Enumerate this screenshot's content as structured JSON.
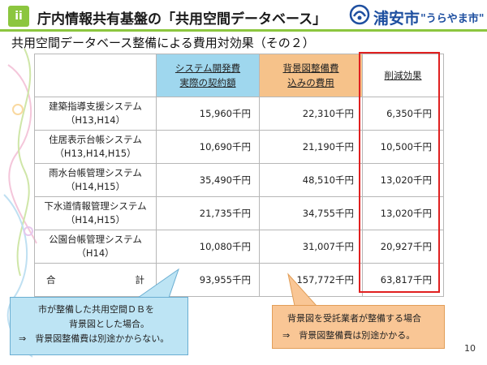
{
  "header": {
    "section_badge": "ii",
    "title": "庁内情報共有基盤の「共用空間データベース」",
    "logo_city": "浦安市",
    "logo_slogan": "\"うらやま市\""
  },
  "subtitle": "共用空間データベース整備による費用対効果（その２）",
  "table": {
    "headers": {
      "col_a_line1": "システム開発費",
      "col_a_line2": "実際の契約額",
      "col_b_line1": "背景図整備費",
      "col_b_line2": "込みの費用",
      "col_c": "削減効果"
    },
    "rows": [
      {
        "name": "建築指導支援システム",
        "years": "（H13,H14）",
        "actual": "15,960千円",
        "with_bg": "22,310千円",
        "reduction": "6,350千円"
      },
      {
        "name": "住居表示台帳システム",
        "years": "（H13,H14,H15）",
        "actual": "10,690千円",
        "with_bg": "21,190千円",
        "reduction": "10,500千円"
      },
      {
        "name": "雨水台帳管理システム",
        "years": "（H14,H15）",
        "actual": "35,490千円",
        "with_bg": "48,510千円",
        "reduction": "13,020千円"
      },
      {
        "name": "下水道情報管理システム",
        "years": "（H14,H15）",
        "actual": "21,735千円",
        "with_bg": "34,755千円",
        "reduction": "13,020千円"
      },
      {
        "name": "公園台帳管理システム",
        "years": "（H14）",
        "actual": "10,080千円",
        "with_bg": "31,007千円",
        "reduction": "20,927千円"
      }
    ],
    "total": {
      "label_left": "合",
      "label_right": "計",
      "actual": "93,955千円",
      "with_bg": "157,772千円",
      "reduction": "63,817千円"
    }
  },
  "callouts": {
    "blue": {
      "line1": "市が整備した共用空間ＤＢを",
      "line2": "背景図とした場合。",
      "line3": "⇒　背景図整備費は別途かからない。"
    },
    "orange": {
      "line1": "背景図を受託業者が整備する場合",
      "line2": "⇒　背景図整備費は別途かかる。"
    }
  },
  "page_number": "10",
  "colors": {
    "accent_green": "#8cc63f",
    "header_blue": "#9fd7ee",
    "header_orange": "#f6c28a",
    "highlight_red": "#e02020",
    "logo_blue": "#1e4fa0"
  }
}
